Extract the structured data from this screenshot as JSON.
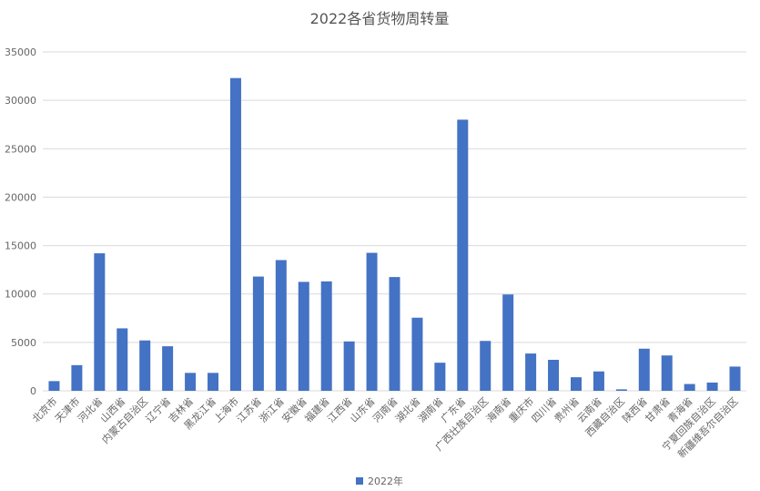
{
  "chart_data": {
    "type": "bar",
    "title": "2022各省货物周转量",
    "xlabel": "",
    "ylabel": "",
    "ylim": [
      0,
      35000
    ],
    "yticks": [
      0,
      5000,
      10000,
      15000,
      20000,
      25000,
      30000,
      35000
    ],
    "grid": true,
    "legend_position": "bottom",
    "colors": {
      "bar": "#4472c4"
    },
    "categories": [
      "北京市",
      "天津市",
      "河北省",
      "山西省",
      "内蒙古自治区",
      "辽宁省",
      "吉林省",
      "黑龙江省",
      "上海市",
      "江苏省",
      "浙江省",
      "安徽省",
      "福建省",
      "江西省",
      "山东省",
      "河南省",
      "湖北省",
      "湖南省",
      "广东省",
      "广西壮族自治区",
      "海南省",
      "重庆市",
      "四川省",
      "贵州省",
      "云南省",
      "西藏自治区",
      "陕西省",
      "甘肃省",
      "青海省",
      "宁夏回族自治区",
      "新疆维吾尔自治区"
    ],
    "series": [
      {
        "name": "2022年",
        "values": [
          1000,
          2650,
          14200,
          6450,
          5200,
          4600,
          1850,
          1850,
          32300,
          11800,
          13500,
          11250,
          11300,
          5100,
          14250,
          11750,
          7550,
          2900,
          28000,
          5150,
          9950,
          3850,
          3200,
          1400,
          2000,
          150,
          4350,
          3650,
          700,
          850,
          2500
        ]
      }
    ]
  }
}
